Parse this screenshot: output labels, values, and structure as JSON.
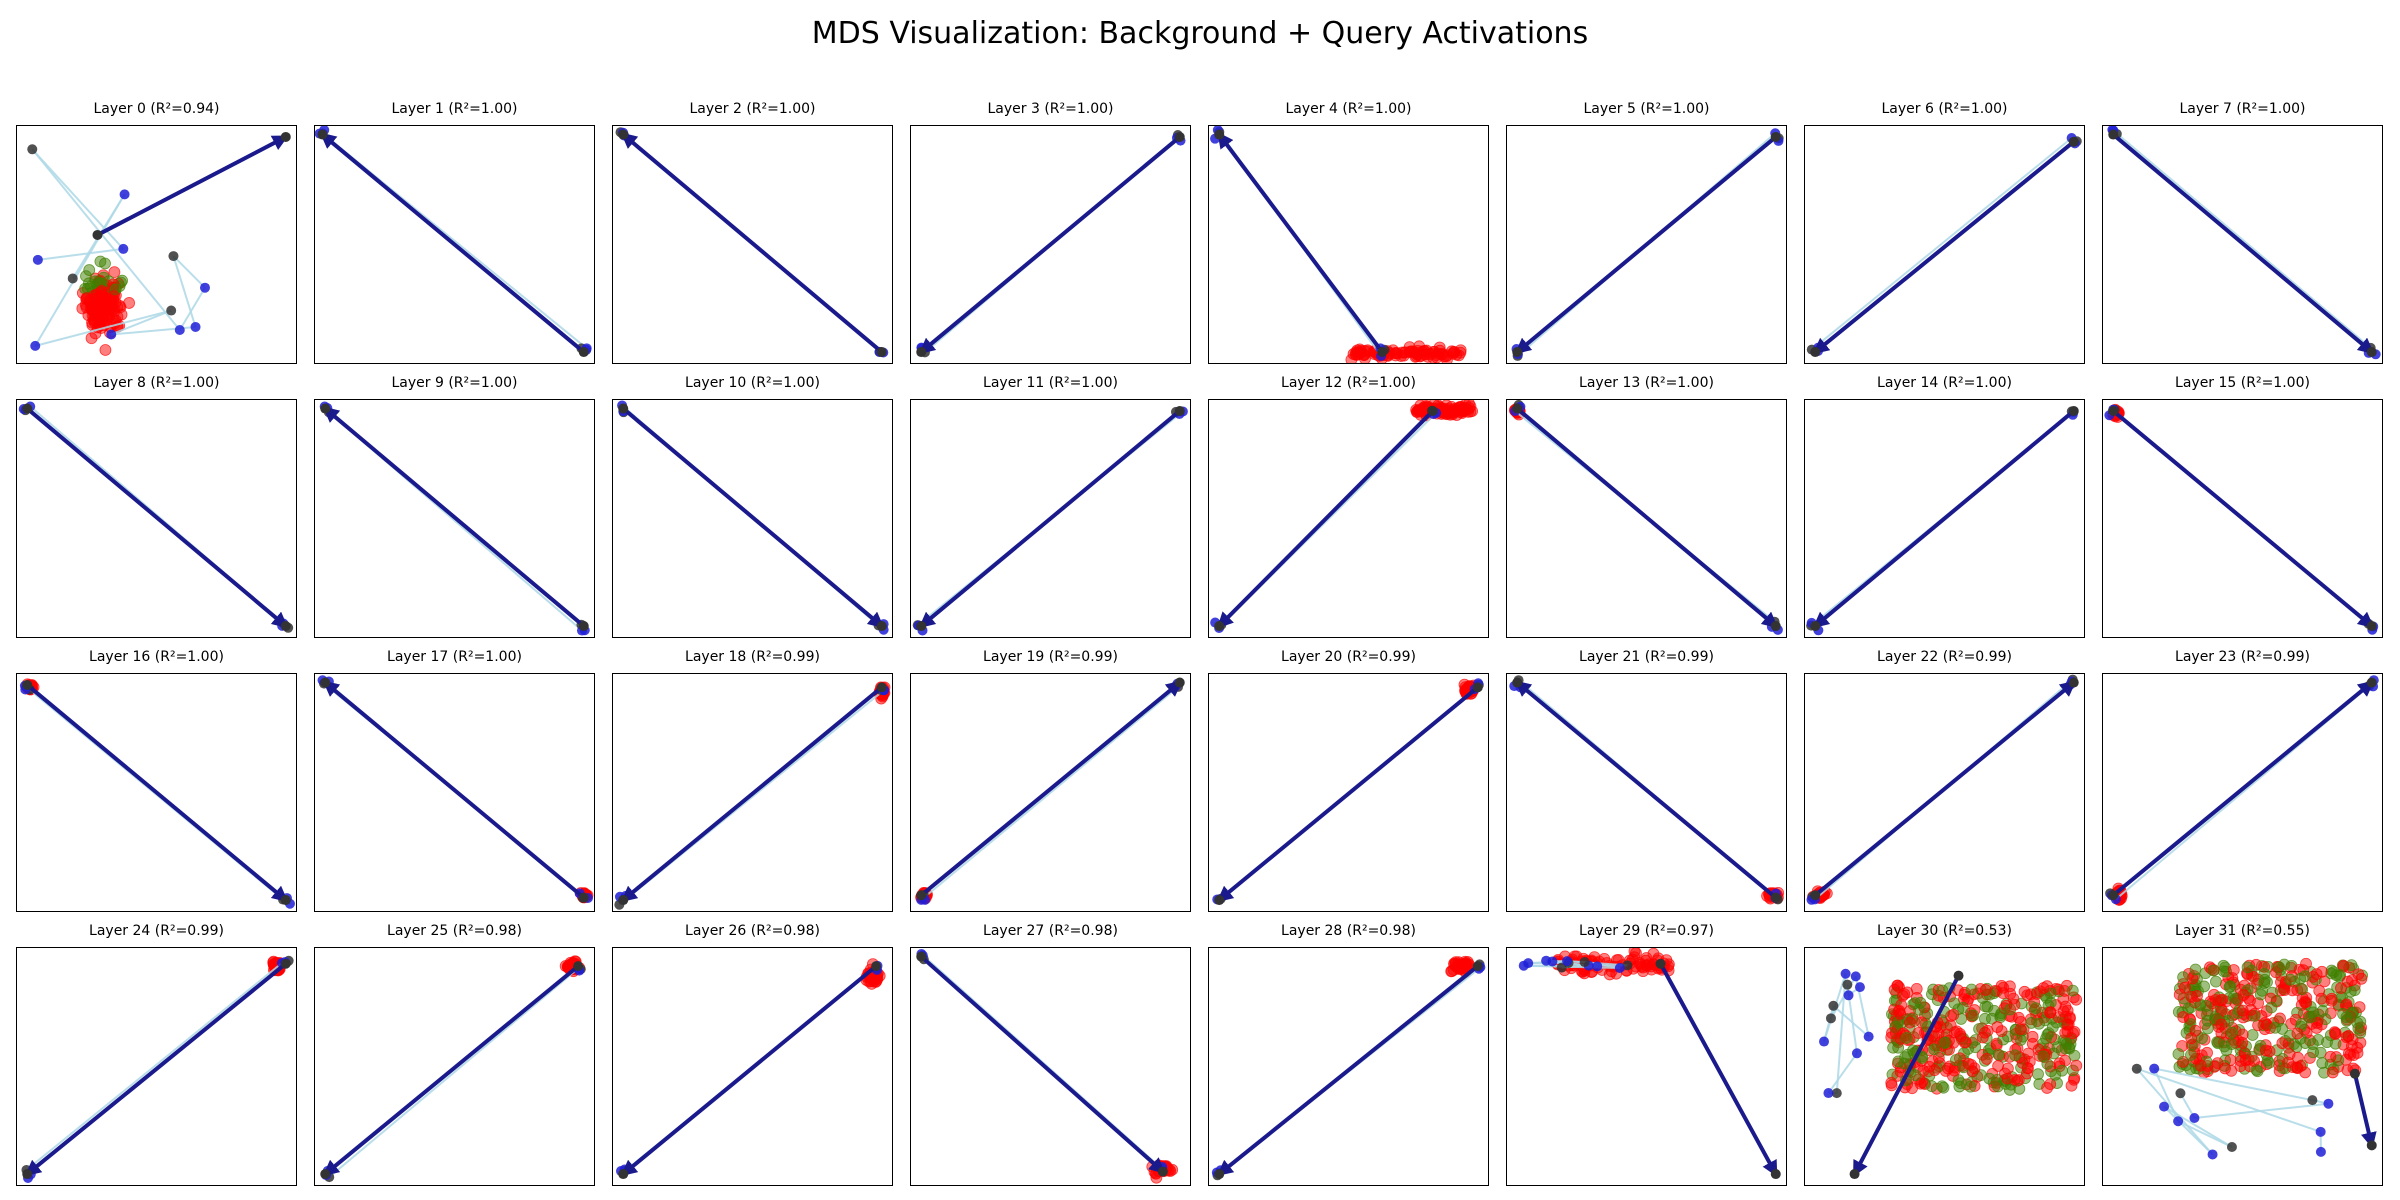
{
  "figure_title": "MDS Visualization: Background + Query Activations",
  "colors": {
    "main_arrow": "#1a1a8c",
    "trajectory": "#add8e6",
    "query_point": "#1f1fd6",
    "endpoint": "#333333",
    "background_red": "#ff0000",
    "background_green": "#3f7f00"
  },
  "chart_data": {
    "type": "scatter",
    "grid": false,
    "axes_ticks": false,
    "panels": [
      {
        "title": "Layer 0 (R²=0.94)",
        "arrow": [
          [
            0.29,
            0.46
          ],
          [
            0.96,
            0.05
          ]
        ],
        "start_side": "left",
        "cluster": {
          "type": "blob",
          "center": [
            0.31,
            0.74
          ],
          "spread": [
            0.07,
            0.14
          ]
        }
      },
      {
        "title": "Layer 1 (R²=1.00)",
        "arrow": [
          [
            0.96,
            0.95
          ],
          [
            0.03,
            0.04
          ]
        ],
        "start_side": "right"
      },
      {
        "title": "Layer 2 (R²=1.00)",
        "arrow": [
          [
            0.96,
            0.95
          ],
          [
            0.04,
            0.04
          ]
        ],
        "start_side": "right"
      },
      {
        "title": "Layer 3 (R²=1.00)",
        "arrow": [
          [
            0.96,
            0.05
          ],
          [
            0.04,
            0.95
          ]
        ],
        "start_side": "right"
      },
      {
        "title": "Layer 4 (R²=1.00)",
        "arrow": [
          [
            0.62,
            0.95
          ],
          [
            0.04,
            0.04
          ]
        ],
        "start_side": "right",
        "cluster": {
          "type": "line",
          "center": [
            0.71,
            0.955
          ],
          "spread": [
            0.2,
            0.01
          ]
        }
      },
      {
        "title": "Layer 5 (R²=1.00)",
        "arrow": [
          [
            0.96,
            0.05
          ],
          [
            0.04,
            0.95
          ]
        ],
        "start_side": "right"
      },
      {
        "title": "Layer 6 (R²=1.00)",
        "arrow": [
          [
            0.96,
            0.07
          ],
          [
            0.04,
            0.95
          ]
        ],
        "start_side": "right"
      },
      {
        "title": "Layer 7 (R²=1.00)",
        "arrow": [
          [
            0.04,
            0.04
          ],
          [
            0.96,
            0.95
          ]
        ],
        "start_side": "left"
      },
      {
        "title": "Layer 8 (R²=1.00)",
        "arrow": [
          [
            0.04,
            0.04
          ],
          [
            0.96,
            0.95
          ]
        ],
        "start_side": "left"
      },
      {
        "title": "Layer 9 (R²=1.00)",
        "arrow": [
          [
            0.96,
            0.95
          ],
          [
            0.04,
            0.04
          ]
        ],
        "start_side": "right"
      },
      {
        "title": "Layer 10 (R²=1.00)",
        "arrow": [
          [
            0.04,
            0.04
          ],
          [
            0.96,
            0.95
          ]
        ],
        "start_side": "left"
      },
      {
        "title": "Layer 11 (R²=1.00)",
        "arrow": [
          [
            0.96,
            0.05
          ],
          [
            0.04,
            0.95
          ]
        ],
        "start_side": "right"
      },
      {
        "title": "Layer 12 (R²=1.00)",
        "arrow": [
          [
            0.8,
            0.05
          ],
          [
            0.04,
            0.95
          ]
        ],
        "start_side": "right",
        "cluster": {
          "type": "line",
          "center": [
            0.84,
            0.045
          ],
          "spread": [
            0.1,
            0.01
          ]
        }
      },
      {
        "title": "Layer 13 (R²=1.00)",
        "arrow": [
          [
            0.04,
            0.04
          ],
          [
            0.96,
            0.95
          ]
        ],
        "start_side": "left",
        "cluster": {
          "type": "point",
          "center": [
            0.04,
            0.05
          ],
          "spread": [
            0.01,
            0.01
          ]
        }
      },
      {
        "title": "Layer 14 (R²=1.00)",
        "arrow": [
          [
            0.96,
            0.05
          ],
          [
            0.04,
            0.95
          ]
        ],
        "start_side": "right"
      },
      {
        "title": "Layer 15 (R²=1.00)",
        "arrow": [
          [
            0.04,
            0.05
          ],
          [
            0.96,
            0.95
          ]
        ],
        "start_side": "left",
        "cluster": {
          "type": "point",
          "center": [
            0.05,
            0.06
          ],
          "spread": [
            0.01,
            0.01
          ]
        }
      },
      {
        "title": "Layer 16 (R²=1.00)",
        "arrow": [
          [
            0.04,
            0.05
          ],
          [
            0.96,
            0.95
          ]
        ],
        "start_side": "left",
        "cluster": {
          "type": "point",
          "center": [
            0.05,
            0.06
          ],
          "spread": [
            0.01,
            0.01
          ]
        }
      },
      {
        "title": "Layer 17 (R²=1.00)",
        "arrow": [
          [
            0.96,
            0.94
          ],
          [
            0.04,
            0.04
          ]
        ],
        "start_side": "right",
        "cluster": {
          "type": "point",
          "center": [
            0.96,
            0.93
          ],
          "spread": [
            0.01,
            0.01
          ]
        }
      },
      {
        "title": "Layer 18 (R²=0.99)",
        "arrow": [
          [
            0.96,
            0.06
          ],
          [
            0.04,
            0.95
          ]
        ],
        "start_side": "right",
        "cluster": {
          "type": "point",
          "center": [
            0.96,
            0.08
          ],
          "spread": [
            0.01,
            0.02
          ]
        }
      },
      {
        "title": "Layer 19 (R²=0.99)",
        "arrow": [
          [
            0.04,
            0.93
          ],
          [
            0.96,
            0.04
          ]
        ],
        "start_side": "left",
        "cluster": {
          "type": "point",
          "center": [
            0.05,
            0.93
          ],
          "spread": [
            0.01,
            0.01
          ]
        }
      },
      {
        "title": "Layer 20 (R²=0.99)",
        "arrow": [
          [
            0.96,
            0.06
          ],
          [
            0.04,
            0.95
          ]
        ],
        "start_side": "right",
        "cluster": {
          "type": "point",
          "center": [
            0.93,
            0.07
          ],
          "spread": [
            0.02,
            0.02
          ]
        }
      },
      {
        "title": "Layer 21 (R²=0.99)",
        "arrow": [
          [
            0.96,
            0.94
          ],
          [
            0.04,
            0.04
          ]
        ],
        "start_side": "right",
        "cluster": {
          "type": "point",
          "center": [
            0.95,
            0.93
          ],
          "spread": [
            0.02,
            0.01
          ]
        }
      },
      {
        "title": "Layer 22 (R²=0.99)",
        "arrow": [
          [
            0.04,
            0.93
          ],
          [
            0.96,
            0.04
          ]
        ],
        "start_side": "left",
        "cluster": {
          "type": "point",
          "center": [
            0.06,
            0.93
          ],
          "spread": [
            0.02,
            0.01
          ]
        }
      },
      {
        "title": "Layer 23 (R²=0.99)",
        "arrow": [
          [
            0.04,
            0.93
          ],
          [
            0.96,
            0.04
          ]
        ],
        "start_side": "left",
        "cluster": {
          "type": "point",
          "center": [
            0.06,
            0.93
          ],
          "spread": [
            0.01,
            0.02
          ]
        }
      },
      {
        "title": "Layer 24 (R²=0.99)",
        "arrow": [
          [
            0.96,
            0.07
          ],
          [
            0.04,
            0.95
          ]
        ],
        "start_side": "right",
        "cluster": {
          "type": "point",
          "center": [
            0.93,
            0.08
          ],
          "spread": [
            0.02,
            0.02
          ]
        }
      },
      {
        "title": "Layer 25 (R²=0.98)",
        "arrow": [
          [
            0.94,
            0.08
          ],
          [
            0.04,
            0.95
          ]
        ],
        "start_side": "right",
        "cluster": {
          "type": "point",
          "center": [
            0.92,
            0.08
          ],
          "spread": [
            0.02,
            0.02
          ]
        }
      },
      {
        "title": "Layer 26 (R²=0.98)",
        "arrow": [
          [
            0.94,
            0.08
          ],
          [
            0.04,
            0.95
          ]
        ],
        "start_side": "right",
        "cluster": {
          "type": "point",
          "center": [
            0.93,
            0.12
          ],
          "spread": [
            0.02,
            0.03
          ]
        }
      },
      {
        "title": "Layer 27 (R²=0.98)",
        "arrow": [
          [
            0.04,
            0.04
          ],
          [
            0.9,
            0.94
          ]
        ],
        "start_side": "left",
        "cluster": {
          "type": "point",
          "center": [
            0.9,
            0.93
          ],
          "spread": [
            0.03,
            0.02
          ]
        }
      },
      {
        "title": "Layer 28 (R²=0.98)",
        "arrow": [
          [
            0.96,
            0.08
          ],
          [
            0.04,
            0.95
          ]
        ],
        "start_side": "right",
        "cluster": {
          "type": "point",
          "center": [
            0.9,
            0.08
          ],
          "spread": [
            0.03,
            0.02
          ]
        }
      },
      {
        "title": "Layer 29 (R²=0.97)",
        "arrow": [
          [
            0.55,
            0.07
          ],
          [
            0.96,
            0.95
          ]
        ],
        "start_side": "left",
        "cluster": {
          "type": "line",
          "center": [
            0.38,
            0.07
          ],
          "spread": [
            0.2,
            0.02
          ]
        }
      },
      {
        "title": "Layer 30 (R²=0.53)",
        "arrow": [
          [
            0.55,
            0.12
          ],
          [
            0.18,
            0.95
          ]
        ],
        "start_side": "left",
        "cluster": {
          "type": "mixed",
          "center": [
            0.64,
            0.38
          ],
          "spread": [
            0.33,
            0.22
          ]
        }
      },
      {
        "title": "Layer 31 (R²=0.55)",
        "arrow": [
          [
            0.9,
            0.53
          ],
          [
            0.96,
            0.83
          ]
        ],
        "start_side": "left",
        "cluster": {
          "type": "mixed",
          "center": [
            0.6,
            0.3
          ],
          "spread": [
            0.33,
            0.23
          ]
        }
      }
    ]
  }
}
